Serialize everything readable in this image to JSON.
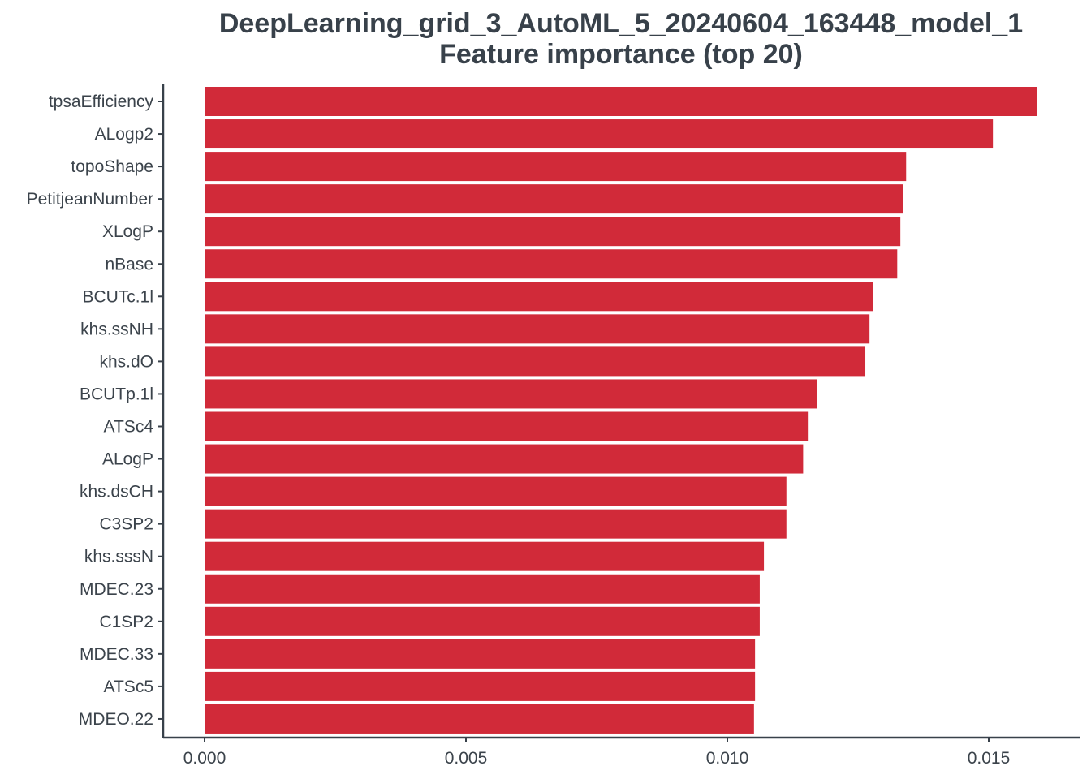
{
  "chart_data": {
    "type": "bar",
    "orientation": "horizontal",
    "title": "DeepLearning_grid_3_AutoML_5_20240604_163448_model_1",
    "subtitle": "Feature importance (top 20)",
    "xlabel": "",
    "ylabel": "",
    "xlim": [
      -0.0008,
      0.0167
    ],
    "x_ticks": [
      "0.000",
      "0.005",
      "0.010",
      "0.015"
    ],
    "x_tick_values": [
      0,
      0.005,
      0.01,
      0.015
    ],
    "grid": false,
    "bar_color": "#d12a39",
    "axis_color": "#38414a",
    "categories": [
      "tpsaEfficiency",
      "ALogp2",
      "topoShape",
      "PetitjeanNumber",
      "XLogP",
      "nBase",
      "BCUTc.1l",
      "khs.ssNH",
      "khs.dO",
      "BCUTp.1l",
      "ATSc4",
      "ALogP",
      "khs.dsCH",
      "C3SP2",
      "khs.sssN",
      "MDEC.23",
      "C1SP2",
      "MDEC.33",
      "ATSc5",
      "MDEO.22"
    ],
    "values": [
      0.01592,
      0.01508,
      0.01342,
      0.01336,
      0.01331,
      0.01325,
      0.01278,
      0.01272,
      0.01264,
      0.01171,
      0.01154,
      0.01145,
      0.01113,
      0.01113,
      0.0107,
      0.01062,
      0.01062,
      0.01053,
      0.01053,
      0.01051
    ]
  }
}
